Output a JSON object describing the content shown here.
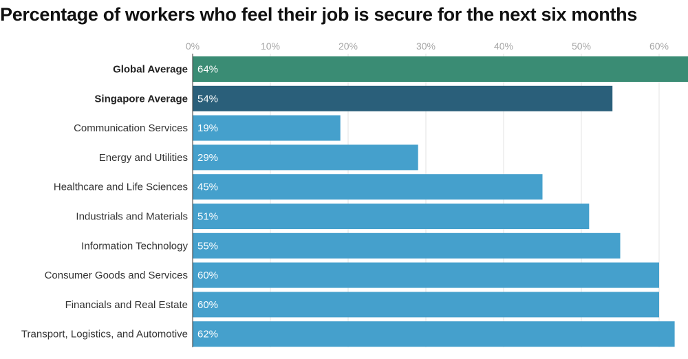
{
  "chart_data": {
    "type": "bar",
    "orientation": "horizontal",
    "title": "Percentage of workers who feel their job is secure for the next six months",
    "xlabel": "",
    "ylabel": "",
    "xlim": [
      0,
      64
    ],
    "x_ticks": [
      0,
      10,
      20,
      30,
      40,
      50,
      60
    ],
    "x_tick_labels": [
      "0%",
      "10%",
      "20%",
      "30%",
      "40%",
      "50%",
      "60%"
    ],
    "x_axis_position": "top",
    "grid": true,
    "categories": [
      "Global Average",
      "Singapore Average",
      "Communication Services",
      "Energy and Utilities",
      "Healthcare and Life Sciences",
      "Industrials and Materials",
      "Information Technology",
      "Consumer Goods and Services",
      "Financials and Real Estate",
      "Transport, Logistics, and Automotive"
    ],
    "values": [
      64,
      54,
      19,
      29,
      45,
      51,
      55,
      60,
      60,
      62
    ],
    "value_labels": [
      "64%",
      "54%",
      "19%",
      "29%",
      "45%",
      "51%",
      "55%",
      "60%",
      "60%",
      "62%"
    ],
    "bold_categories": [
      "Global Average",
      "Singapore Average"
    ],
    "colors": [
      "#3a8c74",
      "#2a5f7a",
      "#45a0cc",
      "#45a0cc",
      "#45a0cc",
      "#45a0cc",
      "#45a0cc",
      "#45a0cc",
      "#45a0cc",
      "#45a0cc"
    ]
  }
}
